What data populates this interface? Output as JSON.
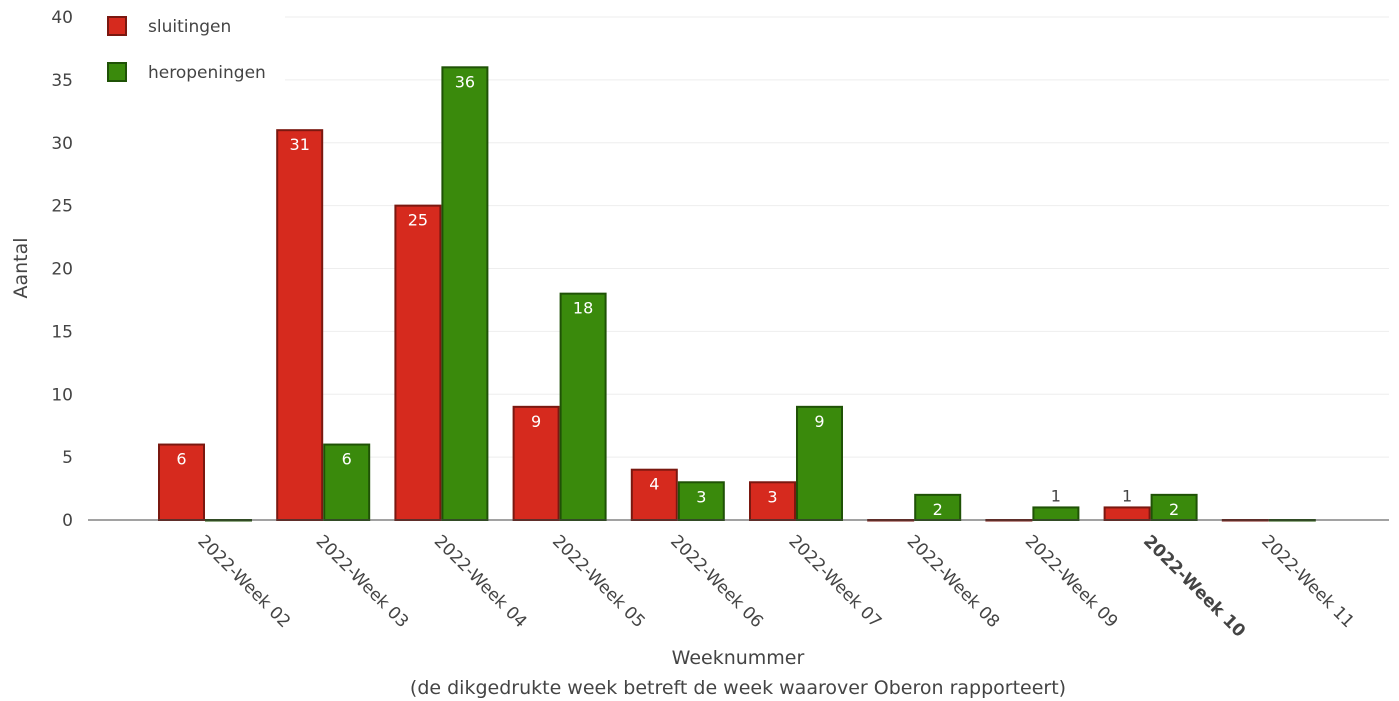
{
  "chart_data": {
    "type": "bar",
    "categories": [
      "2022-Week 02",
      "2022-Week 03",
      "2022-Week 04",
      "2022-Week 05",
      "2022-Week 06",
      "2022-Week 07",
      "2022-Week 08",
      "2022-Week 09",
      "2022-Week 10",
      "2022-Week 11"
    ],
    "highlighted_category": "2022-Week 10",
    "series": [
      {
        "name": "sluitingen",
        "values": [
          6,
          31,
          25,
          9,
          4,
          3,
          0,
          0,
          1,
          0
        ],
        "color": "#d62a1e",
        "edge_color": "#7a1810"
      },
      {
        "name": "heropeningen",
        "values": [
          0,
          6,
          36,
          18,
          3,
          9,
          2,
          1,
          2,
          0
        ],
        "color": "#3a8a0c",
        "edge_color": "#1f5206"
      }
    ],
    "xlabel": "Weeknummer",
    "xlabel_sub": "(de dikgedrukte week betreft de week waarover Oberon rapporteert)",
    "ylabel": "Aantal",
    "ylim": [
      0,
      40
    ],
    "yticks": [
      0,
      5,
      10,
      15,
      20,
      25,
      30,
      35,
      40
    ],
    "grid": true,
    "legend_position": "top-left"
  }
}
